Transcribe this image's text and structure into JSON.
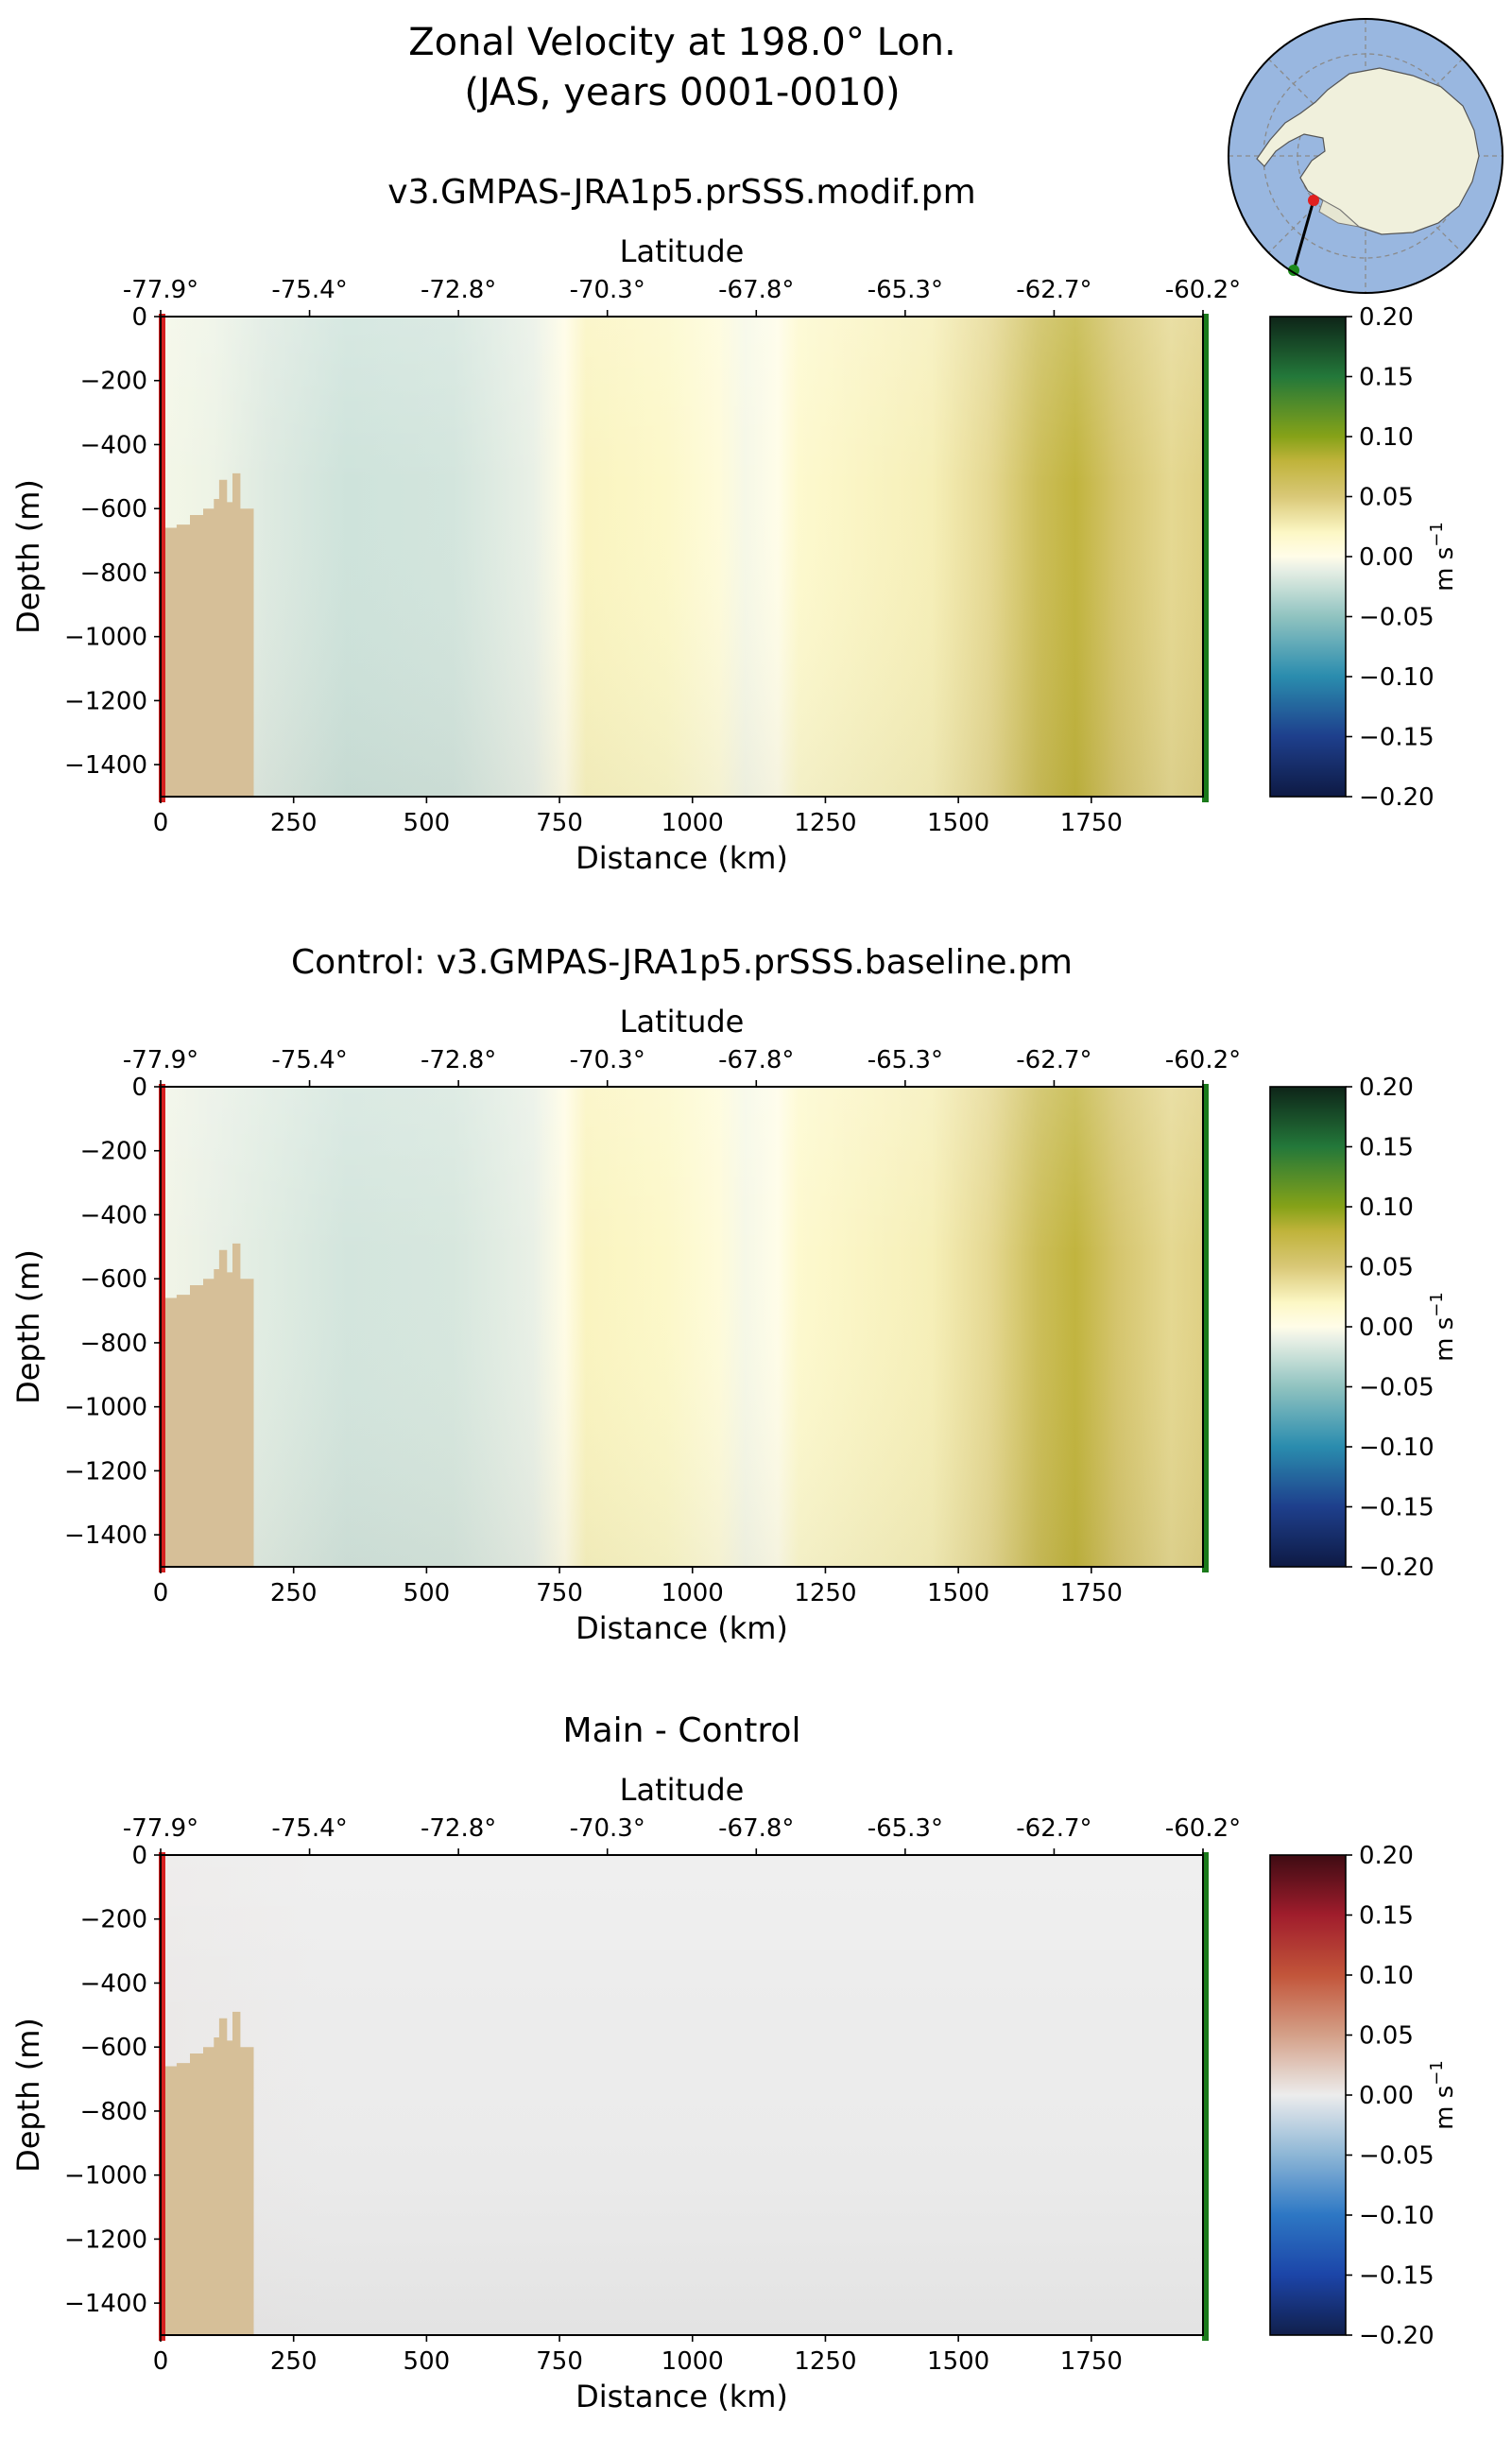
{
  "figure": {
    "title_line1": "Zonal Velocity at 198.0° Lon.",
    "title_line2": "(JAS, years 0001-0010)"
  },
  "colors": {
    "bathymetry": "#d6bf98",
    "start_marker": "#d42020",
    "end_marker": "#1b7a1b",
    "transect_line": "#000000",
    "ocean_inset": "#99b7e0",
    "land_inset": "#f0f0dc"
  },
  "inset_map": {
    "projection": "south-polar-stereographic",
    "transect_start": [
      198.0,
      -77.9
    ],
    "transect_end": [
      198.0,
      -60.2
    ]
  },
  "chart_data": [
    {
      "type": "heatmap",
      "title": "v3.GMPAS-JRA1p5.prSSS.modif.pm",
      "xlabel": "Distance (km)",
      "ylabel": "Depth (m)",
      "top_xlabel": "Latitude",
      "xlim": [
        0,
        1960
      ],
      "ylim": [
        -1500,
        0
      ],
      "xticks": [
        0,
        250,
        500,
        750,
        1000,
        1250,
        1500,
        1750
      ],
      "yticks": [
        0,
        -200,
        -400,
        -600,
        -800,
        -1000,
        -1200,
        -1400
      ],
      "xtick_labels": [
        "0",
        "250",
        "500",
        "750",
        "1000",
        "1250",
        "1500",
        "1750"
      ],
      "ytick_labels": [
        "0",
        "−200",
        "−400",
        "−600",
        "−800",
        "−1000",
        "−1200",
        "−1400"
      ],
      "lat_ticks": [
        {
          "km": 0,
          "label": "-77.9°"
        },
        {
          "km": 280,
          "label": "-75.4°"
        },
        {
          "km": 560,
          "label": "-72.8°"
        },
        {
          "km": 840,
          "label": "-70.3°"
        },
        {
          "km": 1120,
          "label": "-67.8°"
        },
        {
          "km": 1400,
          "label": "-65.3°"
        },
        {
          "km": 1680,
          "label": "-62.7°"
        },
        {
          "km": 1960,
          "label": "-60.2°"
        }
      ],
      "colorbar": {
        "label": "m s",
        "label_exp": "−1",
        "cmap": "green-yellow-blue",
        "range": [
          -0.2,
          0.2
        ],
        "ticks": [
          0.2,
          0.15,
          0.1,
          0.05,
          0.0,
          -0.05,
          -0.1,
          -0.15,
          -0.2
        ],
        "tick_labels": [
          "0.20",
          "0.15",
          "0.10",
          "0.05",
          "0.00",
          "−0.05",
          "−0.10",
          "−0.15",
          "−0.20"
        ]
      },
      "velocity_profile": [
        {
          "km": 0,
          "v": -0.005
        },
        {
          "km": 100,
          "v": -0.008
        },
        {
          "km": 200,
          "v": -0.015
        },
        {
          "km": 350,
          "v": -0.022
        },
        {
          "km": 550,
          "v": -0.02
        },
        {
          "km": 700,
          "v": -0.01
        },
        {
          "km": 760,
          "v": 0.002
        },
        {
          "km": 800,
          "v": 0.022
        },
        {
          "km": 950,
          "v": 0.018
        },
        {
          "km": 1050,
          "v": 0.008
        },
        {
          "km": 1100,
          "v": -0.004
        },
        {
          "km": 1160,
          "v": 0.0
        },
        {
          "km": 1200,
          "v": 0.015
        },
        {
          "km": 1450,
          "v": 0.025
        },
        {
          "km": 1560,
          "v": 0.04
        },
        {
          "km": 1650,
          "v": 0.065
        },
        {
          "km": 1720,
          "v": 0.078
        },
        {
          "km": 1800,
          "v": 0.055
        },
        {
          "km": 1900,
          "v": 0.04
        },
        {
          "km": 1960,
          "v": 0.045
        }
      ],
      "bathymetry_outline": [
        {
          "km": 0,
          "depth": -660
        },
        {
          "km": 30,
          "depth": -660
        },
        {
          "km": 30,
          "depth": -650
        },
        {
          "km": 55,
          "depth": -650
        },
        {
          "km": 55,
          "depth": -620
        },
        {
          "km": 80,
          "depth": -620
        },
        {
          "km": 80,
          "depth": -600
        },
        {
          "km": 100,
          "depth": -600
        },
        {
          "km": 100,
          "depth": -570
        },
        {
          "km": 110,
          "depth": -570
        },
        {
          "km": 110,
          "depth": -510
        },
        {
          "km": 125,
          "depth": -510
        },
        {
          "km": 125,
          "depth": -580
        },
        {
          "km": 135,
          "depth": -580
        },
        {
          "km": 135,
          "depth": -490
        },
        {
          "km": 150,
          "depth": -490
        },
        {
          "km": 150,
          "depth": -600
        },
        {
          "km": 175,
          "depth": -600
        },
        {
          "km": 175,
          "depth": -1500
        },
        {
          "km": 0,
          "depth": -1500
        }
      ]
    },
    {
      "type": "heatmap",
      "title": "Control: v3.GMPAS-JRA1p5.prSSS.baseline.pm",
      "xlabel": "Distance (km)",
      "ylabel": "Depth (m)",
      "top_xlabel": "Latitude",
      "xlim": [
        0,
        1960
      ],
      "ylim": [
        -1500,
        0
      ],
      "xticks": [
        0,
        250,
        500,
        750,
        1000,
        1250,
        1500,
        1750
      ],
      "yticks": [
        0,
        -200,
        -400,
        -600,
        -800,
        -1000,
        -1200,
        -1400
      ],
      "xtick_labels": [
        "0",
        "250",
        "500",
        "750",
        "1000",
        "1250",
        "1500",
        "1750"
      ],
      "ytick_labels": [
        "0",
        "−200",
        "−400",
        "−600",
        "−800",
        "−1000",
        "−1200",
        "−1400"
      ],
      "lat_ticks": [
        {
          "km": 0,
          "label": "-77.9°"
        },
        {
          "km": 280,
          "label": "-75.4°"
        },
        {
          "km": 560,
          "label": "-72.8°"
        },
        {
          "km": 840,
          "label": "-70.3°"
        },
        {
          "km": 1120,
          "label": "-67.8°"
        },
        {
          "km": 1400,
          "label": "-65.3°"
        },
        {
          "km": 1680,
          "label": "-62.7°"
        },
        {
          "km": 1960,
          "label": "-60.2°"
        }
      ],
      "colorbar": {
        "label": "m s",
        "label_exp": "−1",
        "cmap": "green-yellow-blue",
        "range": [
          -0.2,
          0.2
        ],
        "ticks": [
          0.2,
          0.15,
          0.1,
          0.05,
          0.0,
          -0.05,
          -0.1,
          -0.15,
          -0.2
        ],
        "tick_labels": [
          "0.20",
          "0.15",
          "0.10",
          "0.05",
          "0.00",
          "−0.05",
          "−0.10",
          "−0.15",
          "−0.20"
        ]
      },
      "velocity_profile": [
        {
          "km": 0,
          "v": -0.006
        },
        {
          "km": 100,
          "v": -0.01
        },
        {
          "km": 200,
          "v": -0.014
        },
        {
          "km": 350,
          "v": -0.02
        },
        {
          "km": 550,
          "v": -0.018
        },
        {
          "km": 700,
          "v": -0.01
        },
        {
          "km": 760,
          "v": 0.002
        },
        {
          "km": 800,
          "v": 0.022
        },
        {
          "km": 950,
          "v": 0.018
        },
        {
          "km": 1050,
          "v": 0.008
        },
        {
          "km": 1100,
          "v": -0.004
        },
        {
          "km": 1160,
          "v": 0.0
        },
        {
          "km": 1200,
          "v": 0.015
        },
        {
          "km": 1450,
          "v": 0.025
        },
        {
          "km": 1560,
          "v": 0.04
        },
        {
          "km": 1650,
          "v": 0.065
        },
        {
          "km": 1720,
          "v": 0.078
        },
        {
          "km": 1800,
          "v": 0.055
        },
        {
          "km": 1900,
          "v": 0.04
        },
        {
          "km": 1960,
          "v": 0.045
        }
      ],
      "bathymetry_outline": [
        {
          "km": 0,
          "depth": -660
        },
        {
          "km": 30,
          "depth": -660
        },
        {
          "km": 30,
          "depth": -650
        },
        {
          "km": 55,
          "depth": -650
        },
        {
          "km": 55,
          "depth": -620
        },
        {
          "km": 80,
          "depth": -620
        },
        {
          "km": 80,
          "depth": -600
        },
        {
          "km": 100,
          "depth": -600
        },
        {
          "km": 100,
          "depth": -570
        },
        {
          "km": 110,
          "depth": -570
        },
        {
          "km": 110,
          "depth": -510
        },
        {
          "km": 125,
          "depth": -510
        },
        {
          "km": 125,
          "depth": -580
        },
        {
          "km": 135,
          "depth": -580
        },
        {
          "km": 135,
          "depth": -490
        },
        {
          "km": 150,
          "depth": -490
        },
        {
          "km": 150,
          "depth": -600
        },
        {
          "km": 175,
          "depth": -600
        },
        {
          "km": 175,
          "depth": -1500
        },
        {
          "km": 0,
          "depth": -1500
        }
      ]
    },
    {
      "type": "heatmap",
      "title": "Main - Control",
      "xlabel": "Distance (km)",
      "ylabel": "Depth (m)",
      "top_xlabel": "Latitude",
      "xlim": [
        0,
        1960
      ],
      "ylim": [
        -1500,
        0
      ],
      "xticks": [
        0,
        250,
        500,
        750,
        1000,
        1250,
        1500,
        1750
      ],
      "yticks": [
        0,
        -200,
        -400,
        -600,
        -800,
        -1000,
        -1200,
        -1400
      ],
      "xtick_labels": [
        "0",
        "250",
        "500",
        "750",
        "1000",
        "1250",
        "1500",
        "1750"
      ],
      "ytick_labels": [
        "0",
        "−200",
        "−400",
        "−600",
        "−800",
        "−1000",
        "−1200",
        "−1400"
      ],
      "lat_ticks": [
        {
          "km": 0,
          "label": "-77.9°"
        },
        {
          "km": 280,
          "label": "-75.4°"
        },
        {
          "km": 560,
          "label": "-72.8°"
        },
        {
          "km": 840,
          "label": "-70.3°"
        },
        {
          "km": 1120,
          "label": "-67.8°"
        },
        {
          "km": 1400,
          "label": "-65.3°"
        },
        {
          "km": 1680,
          "label": "-62.7°"
        },
        {
          "km": 1960,
          "label": "-60.2°"
        }
      ],
      "colorbar": {
        "label": "m s",
        "label_exp": "−1",
        "cmap": "red-white-blue",
        "range": [
          -0.2,
          0.2
        ],
        "ticks": [
          0.2,
          0.15,
          0.1,
          0.05,
          0.0,
          -0.05,
          -0.1,
          -0.15,
          -0.2
        ],
        "tick_labels": [
          "0.20",
          "0.15",
          "0.10",
          "0.05",
          "0.00",
          "−0.05",
          "−0.10",
          "−0.15",
          "−0.20"
        ]
      },
      "velocity_profile": [
        {
          "km": 0,
          "v": 0.002
        },
        {
          "km": 300,
          "v": 0.0
        },
        {
          "km": 1960,
          "v": 0.0
        }
      ],
      "bathymetry_outline": [
        {
          "km": 0,
          "depth": -660
        },
        {
          "km": 30,
          "depth": -660
        },
        {
          "km": 30,
          "depth": -650
        },
        {
          "km": 55,
          "depth": -650
        },
        {
          "km": 55,
          "depth": -620
        },
        {
          "km": 80,
          "depth": -620
        },
        {
          "km": 80,
          "depth": -600
        },
        {
          "km": 100,
          "depth": -600
        },
        {
          "km": 100,
          "depth": -570
        },
        {
          "km": 110,
          "depth": -570
        },
        {
          "km": 110,
          "depth": -510
        },
        {
          "km": 125,
          "depth": -510
        },
        {
          "km": 125,
          "depth": -580
        },
        {
          "km": 135,
          "depth": -580
        },
        {
          "km": 135,
          "depth": -490
        },
        {
          "km": 150,
          "depth": -490
        },
        {
          "km": 150,
          "depth": -600
        },
        {
          "km": 175,
          "depth": -600
        },
        {
          "km": 175,
          "depth": -1500
        },
        {
          "km": 0,
          "depth": -1500
        }
      ]
    }
  ]
}
